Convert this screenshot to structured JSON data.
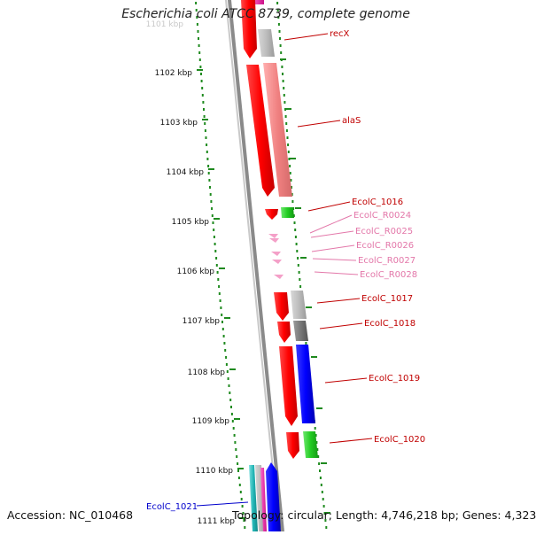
{
  "title": "Escherichia coli ATCC 8739, complete genome",
  "accession": "Accession: NC_010468",
  "summary": "Topology: circular; Length: 4,746,218 bp; Genes: 4,323",
  "colors": {
    "scale_dots": "#1f8a1f",
    "backbone": "#808080",
    "gene_label": "#c00000",
    "rna_label": "#e377a9",
    "cds_forward": "#ff0000",
    "highlight_label": "#0000cc"
  },
  "scale": {
    "unit": "kbp",
    "first_partial_label": "1101 kbp",
    "ticks": [
      "1102 kbp",
      "1103 kbp",
      "1104 kbp",
      "1105 kbp",
      "1106 kbp",
      "1107 kbp",
      "1108 kbp",
      "1109 kbp",
      "1110 kbp",
      "1111 kbp"
    ]
  },
  "features": [
    {
      "label": "recX",
      "kind": "gene"
    },
    {
      "label": "alaS",
      "kind": "gene"
    },
    {
      "label": "EcolC_1016",
      "kind": "gene"
    },
    {
      "label": "EcolC_R0024",
      "kind": "rna"
    },
    {
      "label": "EcolC_R0025",
      "kind": "rna"
    },
    {
      "label": "EcolC_R0026",
      "kind": "rna"
    },
    {
      "label": "EcolC_R0027",
      "kind": "rna"
    },
    {
      "label": "EcolC_R0028",
      "kind": "rna"
    },
    {
      "label": "EcolC_1017",
      "kind": "gene"
    },
    {
      "label": "EcolC_1018",
      "kind": "gene"
    },
    {
      "label": "EcolC_1019",
      "kind": "gene"
    },
    {
      "label": "EcolC_1020",
      "kind": "gene"
    },
    {
      "label": "EcolC_1021",
      "kind": "highlight"
    }
  ]
}
